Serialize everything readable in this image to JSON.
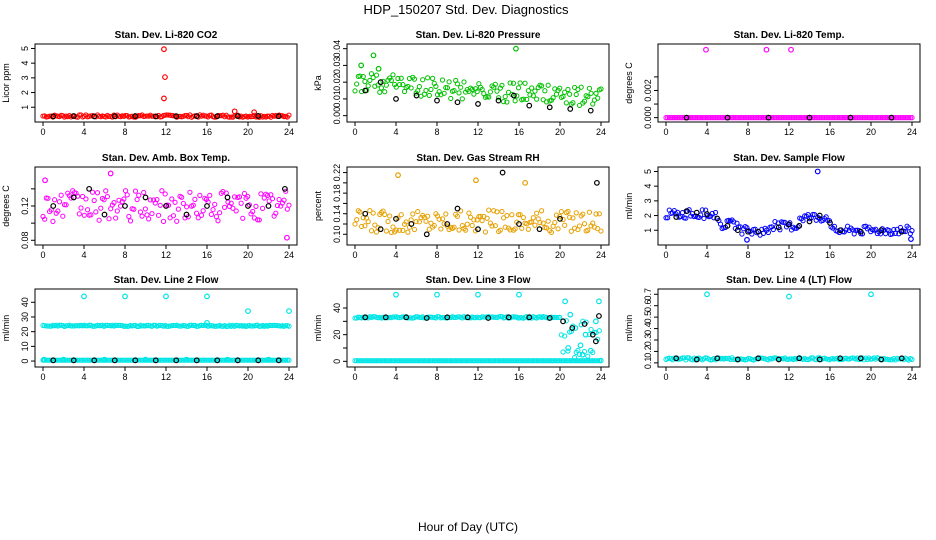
{
  "figure": {
    "title": "HDP_150207  Std. Dev. Diagnostics",
    "xlabel": "Hour of Day (UTC)",
    "series_colors": {
      "base": "#000000"
    }
  },
  "chart_data": [
    {
      "type": "scatter",
      "title": "Stan. Dev. Li-820 CO2",
      "ylabel": "Licor ppm",
      "xlim": [
        0,
        24
      ],
      "ylim": [
        0.2,
        5.1
      ],
      "x_ticks": [
        0,
        4,
        8,
        12,
        16,
        20,
        24
      ],
      "y_ticks": [
        1,
        2,
        3,
        4,
        5
      ],
      "y_tick_labels": [
        "1",
        "2",
        "3",
        "4",
        "5"
      ],
      "color": "#ff0000",
      "baseline": 0.4,
      "spread": 0.08,
      "outliers": [
        [
          11.8,
          4.95
        ],
        [
          11.9,
          3.05
        ],
        [
          11.8,
          1.6
        ],
        [
          18.7,
          0.72
        ],
        [
          20.6,
          0.66
        ]
      ],
      "black_points": [
        [
          1,
          0.38
        ],
        [
          3,
          0.4
        ],
        [
          5,
          0.38
        ],
        [
          7,
          0.39
        ],
        [
          9,
          0.4
        ],
        [
          11,
          0.38
        ],
        [
          13,
          0.39
        ],
        [
          15,
          0.4
        ],
        [
          17,
          0.39
        ],
        [
          19,
          0.4
        ],
        [
          21,
          0.41
        ],
        [
          23,
          0.39
        ]
      ]
    },
    {
      "type": "scatter",
      "title": "Stan. Dev. Li-820 Pressure",
      "ylabel": "kPa",
      "xlim": [
        0,
        24
      ],
      "ylim": [
        -0.002,
        0.041
      ],
      "x_ticks": [
        0,
        4,
        8,
        12,
        16,
        20,
        24
      ],
      "y_ticks": [
        0,
        0.01,
        0.02,
        0.03,
        0.04
      ],
      "y_tick_labels": [
        "0.00",
        "0.01",
        "0.02",
        "0.03",
        "0.04"
      ],
      "color": "#00c000",
      "baseline": 0.012,
      "spread": 0.005,
      "outliers": [
        [
          1.8,
          0.036
        ],
        [
          15.7,
          0.04
        ],
        [
          0.6,
          0.03
        ],
        [
          2.3,
          0.028
        ]
      ],
      "black_points": [
        [
          1,
          0.015
        ],
        [
          2.5,
          0.02
        ],
        [
          4,
          0.01
        ],
        [
          6,
          0.012
        ],
        [
          8,
          0.009
        ],
        [
          10,
          0.008
        ],
        [
          12,
          0.007
        ],
        [
          14,
          0.009
        ],
        [
          15.5,
          0.012
        ],
        [
          17,
          0.006
        ],
        [
          19,
          0.005
        ],
        [
          21,
          0.004
        ],
        [
          23,
          0.003
        ]
      ]
    },
    {
      "type": "scatter",
      "title": "Stan. Dev. Li-820 Temp.",
      "ylabel": "degrees C",
      "xlim": [
        0,
        24
      ],
      "ylim": [
        -0.0001,
        0.0052
      ],
      "x_ticks": [
        0,
        4,
        8,
        12,
        16,
        20,
        24
      ],
      "y_ticks": [
        0,
        0.001,
        0.002,
        0.003
      ],
      "y_tick_labels": [
        "0.000",
        "",
        "0.002",
        ""
      ],
      "color": "#ff00ff",
      "baseline": 0.0,
      "spread": 0.0,
      "outliers": [
        [
          3.9,
          0.005
        ],
        [
          9.8,
          0.005
        ],
        [
          12.2,
          0.005
        ]
      ],
      "black_points": [
        [
          2,
          0.0
        ],
        [
          6,
          0.0
        ],
        [
          10,
          0.0
        ],
        [
          14,
          0.0
        ],
        [
          18,
          0.0
        ],
        [
          22,
          0.0
        ]
      ]
    },
    {
      "type": "scatter",
      "title": "Stan. Dev. Amb. Box Temp.",
      "ylabel": "degrees C",
      "xlim": [
        0,
        24
      ],
      "ylim": [
        0.078,
        0.162
      ],
      "x_ticks": [
        0,
        4,
        8,
        12,
        16,
        20,
        24
      ],
      "y_ticks": [
        0.08,
        0.1,
        0.12,
        0.14
      ],
      "y_tick_labels": [
        "0.08",
        "",
        "0.12",
        ""
      ],
      "color": "#ff00ff",
      "baseline": 0.12,
      "spread": 0.018,
      "outliers": [
        [
          23.8,
          0.083
        ],
        [
          6.6,
          0.158
        ],
        [
          0.2,
          0.15
        ]
      ],
      "black_points": [
        [
          1,
          0.12
        ],
        [
          3,
          0.13
        ],
        [
          4.5,
          0.14
        ],
        [
          6,
          0.11
        ],
        [
          8,
          0.12
        ],
        [
          10,
          0.13
        ],
        [
          12,
          0.12
        ],
        [
          14,
          0.11
        ],
        [
          16,
          0.12
        ],
        [
          18,
          0.13
        ],
        [
          20,
          0.12
        ],
        [
          22,
          0.12
        ],
        [
          23.6,
          0.14
        ]
      ]
    },
    {
      "type": "scatter",
      "title": "Stan. Dev. Gas Stream RH",
      "ylabel": "percent",
      "xlim": [
        0,
        24
      ],
      "ylim": [
        0.085,
        0.225
      ],
      "x_ticks": [
        0,
        4,
        8,
        12,
        16,
        20,
        24
      ],
      "y_ticks": [
        0.1,
        0.12,
        0.14,
        0.16,
        0.18,
        0.2,
        0.22
      ],
      "y_tick_labels": [
        "0.10",
        "",
        "0.14",
        "",
        "0.18",
        "",
        "0.22"
      ],
      "color": "#e6a000",
      "baseline": 0.125,
      "spread": 0.022,
      "outliers": [
        [
          4.2,
          0.215
        ],
        [
          11.8,
          0.205
        ],
        [
          16.6,
          0.2
        ]
      ],
      "black_points": [
        [
          1,
          0.14
        ],
        [
          2.5,
          0.11
        ],
        [
          4,
          0.13
        ],
        [
          5.5,
          0.12
        ],
        [
          7,
          0.1
        ],
        [
          9,
          0.12
        ],
        [
          10,
          0.15
        ],
        [
          12,
          0.11
        ],
        [
          14.4,
          0.22
        ],
        [
          16,
          0.12
        ],
        [
          18,
          0.11
        ],
        [
          20,
          0.13
        ],
        [
          23.6,
          0.2
        ]
      ]
    },
    {
      "type": "scatter",
      "title": "Stan. Dev. Sample Flow",
      "ylabel": "ml/min",
      "xlim": [
        0,
        24
      ],
      "ylim": [
        0.2,
        5.1
      ],
      "x_ticks": [
        0,
        4,
        8,
        12,
        16,
        20,
        24
      ],
      "y_ticks": [
        1,
        2,
        3,
        4,
        5
      ],
      "y_tick_labels": [
        "1",
        "2",
        "3",
        "4",
        "5"
      ],
      "color": "#0000ff",
      "baseline": 1.3,
      "spread": 0.35,
      "outliers": [
        [
          14.8,
          5.0
        ],
        [
          7.9,
          0.35
        ],
        [
          23.9,
          0.4
        ]
      ],
      "black_points": [
        [
          1,
          1.9
        ],
        [
          2,
          2.3
        ],
        [
          3,
          2.2
        ],
        [
          4,
          2.1
        ],
        [
          5,
          1.8
        ],
        [
          6,
          1.3
        ],
        [
          7,
          1.0
        ],
        [
          8,
          0.9
        ],
        [
          9,
          0.9
        ],
        [
          11,
          1.2
        ],
        [
          12,
          1.4
        ],
        [
          13,
          1.3
        ],
        [
          14,
          1.6
        ],
        [
          15,
          2.0
        ],
        [
          16,
          1.5
        ],
        [
          17,
          1.0
        ],
        [
          19,
          0.9
        ],
        [
          21,
          1.0
        ],
        [
          23,
          0.9
        ]
      ]
    },
    {
      "type": "scatter",
      "title": "Stan. Dev. Line 2 Flow",
      "ylabel": "ml/min",
      "xlim": [
        0,
        24
      ],
      "ylim": [
        -2,
        47
      ],
      "x_ticks": [
        0,
        4,
        8,
        12,
        16,
        20,
        24
      ],
      "y_ticks": [
        0,
        10,
        20,
        30,
        40
      ],
      "y_tick_labels": [
        "0",
        "10",
        "20",
        "30",
        "40"
      ],
      "color": "#00e5e5",
      "baseline": 24,
      "spread": 0.4,
      "outliers": [
        [
          4,
          44
        ],
        [
          8,
          44
        ],
        [
          12,
          44
        ],
        [
          16,
          44
        ],
        [
          20,
          34
        ],
        [
          24,
          34
        ],
        [
          16,
          26
        ],
        [
          0.1,
          1
        ],
        [
          2,
          1
        ],
        [
          6,
          1
        ],
        [
          10,
          1
        ],
        [
          14,
          1
        ],
        [
          18,
          1
        ],
        [
          22,
          1
        ]
      ],
      "black_points": [
        [
          1,
          0.5
        ],
        [
          3,
          0.5
        ],
        [
          5,
          0.5
        ],
        [
          7,
          0.5
        ],
        [
          9,
          0.5
        ],
        [
          11,
          0.5
        ],
        [
          13,
          0.5
        ],
        [
          15,
          0.5
        ],
        [
          17,
          0.5
        ],
        [
          19,
          0.5
        ],
        [
          21,
          0.5
        ],
        [
          23,
          0.5
        ]
      ]
    },
    {
      "type": "scatter",
      "title": "Stan. Dev. Line 3 Flow",
      "ylabel": "ml/min",
      "xlim": [
        0,
        24
      ],
      "ylim": [
        -2,
        52
      ],
      "x_ticks": [
        0,
        4,
        8,
        12,
        16,
        20,
        24
      ],
      "y_ticks": [
        0,
        10,
        20,
        30,
        40
      ],
      "y_tick_labels": [
        "0",
        "",
        "20",
        "",
        "40"
      ],
      "color": "#00e5e5",
      "baseline": 33,
      "spread": 0.6,
      "outliers": [
        [
          4,
          50
        ],
        [
          8,
          50
        ],
        [
          12,
          50
        ],
        [
          16,
          50
        ],
        [
          20.5,
          45
        ],
        [
          21,
          35
        ],
        [
          21.5,
          25
        ],
        [
          22,
          12
        ],
        [
          22.5,
          20
        ],
        [
          23,
          8
        ],
        [
          23.5,
          30
        ],
        [
          23.8,
          45
        ],
        [
          20.8,
          10
        ],
        [
          22.2,
          5
        ]
      ],
      "black_points": [
        [
          1,
          33
        ],
        [
          3,
          33
        ],
        [
          5,
          33
        ],
        [
          7,
          32.5
        ],
        [
          9,
          33
        ],
        [
          11,
          33
        ],
        [
          13,
          32.5
        ],
        [
          15,
          33
        ],
        [
          17,
          33
        ],
        [
          19,
          32.5
        ],
        [
          20.3,
          30
        ],
        [
          21.2,
          25
        ],
        [
          22.4,
          28
        ],
        [
          23.2,
          20
        ],
        [
          23.8,
          34
        ],
        [
          23.5,
          15
        ]
      ]
    },
    {
      "type": "scatter",
      "title": "Stan. Dev. Line 4 (LT) Flow",
      "ylabel": "ml/min",
      "xlim": [
        0,
        24
      ],
      "ylim": [
        0.09,
        0.72
      ],
      "x_ticks": [
        0,
        4,
        8,
        12,
        16,
        20,
        24
      ],
      "y_ticks": [
        0.1,
        0.2,
        0.3,
        0.4,
        0.5,
        0.6,
        0.7
      ],
      "y_tick_labels": [
        "0.1",
        "0.2",
        "0.3",
        "0.4",
        "0.5",
        "0.6",
        "0.7"
      ],
      "color": "#00e5e5",
      "baseline": 0.135,
      "spread": 0.01,
      "outliers": [
        [
          4,
          0.7
        ],
        [
          12,
          0.68
        ],
        [
          20,
          0.7
        ]
      ],
      "black_points": [
        [
          1,
          0.14
        ],
        [
          3,
          0.13
        ],
        [
          5,
          0.14
        ],
        [
          7,
          0.13
        ],
        [
          9,
          0.14
        ],
        [
          11,
          0.13
        ],
        [
          13,
          0.14
        ],
        [
          15,
          0.13
        ],
        [
          17,
          0.14
        ],
        [
          19,
          0.14
        ],
        [
          21,
          0.13
        ],
        [
          23,
          0.14
        ]
      ]
    }
  ]
}
